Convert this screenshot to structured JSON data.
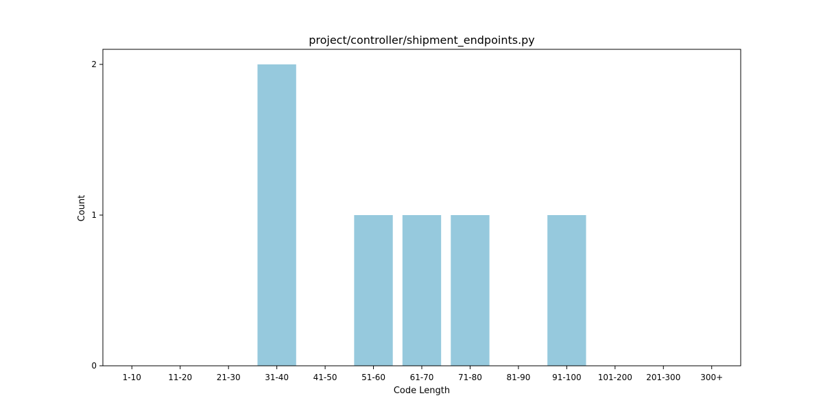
{
  "chart_data": {
    "type": "bar",
    "title": "project/controller/shipment_endpoints.py",
    "xlabel": "Code Length",
    "ylabel": "Count",
    "categories": [
      "1-10",
      "11-20",
      "21-30",
      "31-40",
      "41-50",
      "51-60",
      "61-70",
      "71-80",
      "81-90",
      "91-100",
      "101-200",
      "201-300",
      "300+"
    ],
    "values": [
      0,
      0,
      0,
      2,
      0,
      1,
      1,
      1,
      0,
      1,
      0,
      0,
      0
    ],
    "ylim": [
      0,
      2.1
    ],
    "yticks": [
      0,
      1,
      2
    ],
    "grid": false,
    "bar_color": "#96c9dd"
  }
}
